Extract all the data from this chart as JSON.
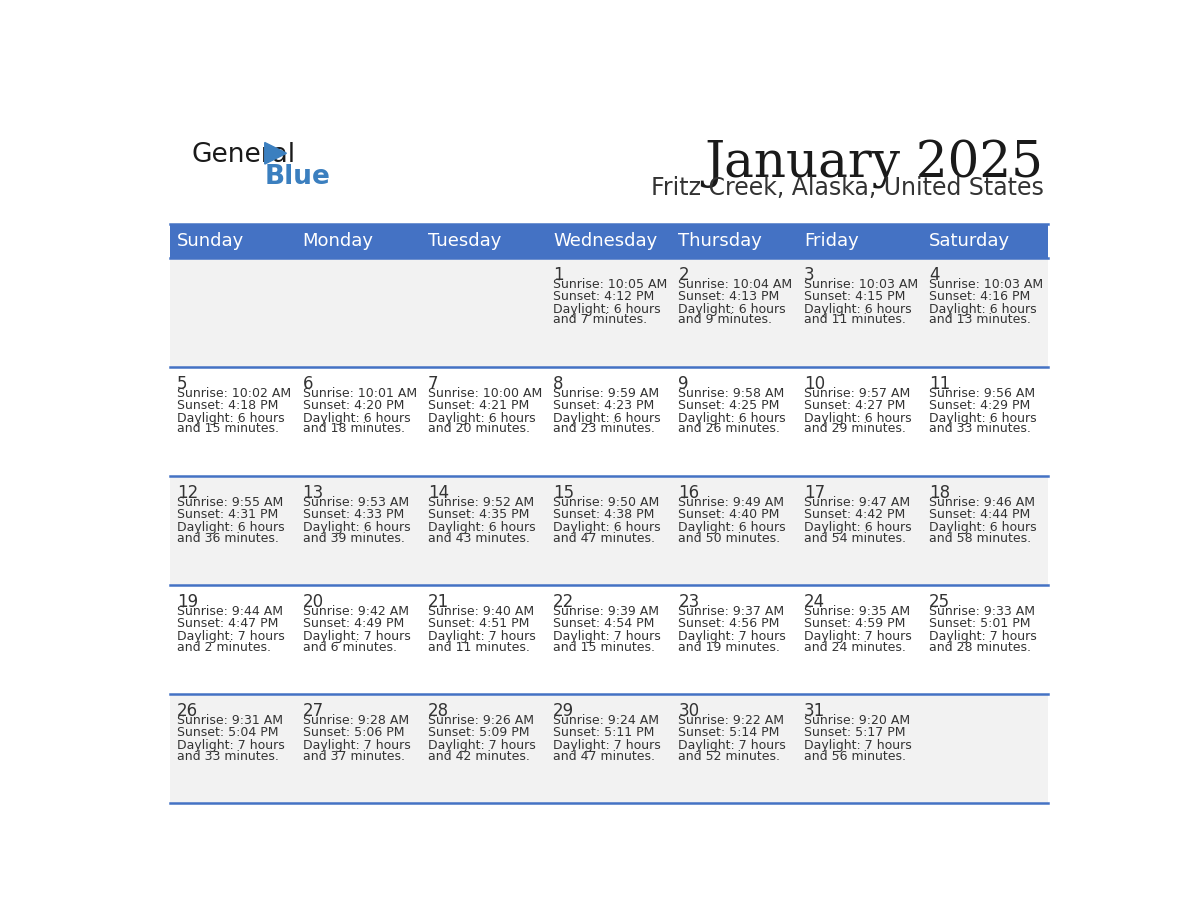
{
  "title": "January 2025",
  "subtitle": "Fritz Creek, Alaska, United States",
  "header_bg_color": "#4472C4",
  "header_text_color": "#FFFFFF",
  "day_names": [
    "Sunday",
    "Monday",
    "Tuesday",
    "Wednesday",
    "Thursday",
    "Friday",
    "Saturday"
  ],
  "row_bg_even": "#F2F2F2",
  "row_bg_odd": "#FFFFFF",
  "cell_text_color": "#333333",
  "date_text_color": "#333333",
  "divider_color": "#4472C4",
  "calendar_data": [
    [
      {
        "day": null,
        "sunrise": null,
        "sunset": null,
        "daylight": null
      },
      {
        "day": null,
        "sunrise": null,
        "sunset": null,
        "daylight": null
      },
      {
        "day": null,
        "sunrise": null,
        "sunset": null,
        "daylight": null
      },
      {
        "day": 1,
        "sunrise": "10:05 AM",
        "sunset": "4:12 PM",
        "daylight": "6 hours and 7 minutes."
      },
      {
        "day": 2,
        "sunrise": "10:04 AM",
        "sunset": "4:13 PM",
        "daylight": "6 hours and 9 minutes."
      },
      {
        "day": 3,
        "sunrise": "10:03 AM",
        "sunset": "4:15 PM",
        "daylight": "6 hours and 11 minutes."
      },
      {
        "day": 4,
        "sunrise": "10:03 AM",
        "sunset": "4:16 PM",
        "daylight": "6 hours and 13 minutes."
      }
    ],
    [
      {
        "day": 5,
        "sunrise": "10:02 AM",
        "sunset": "4:18 PM",
        "daylight": "6 hours and 15 minutes."
      },
      {
        "day": 6,
        "sunrise": "10:01 AM",
        "sunset": "4:20 PM",
        "daylight": "6 hours and 18 minutes."
      },
      {
        "day": 7,
        "sunrise": "10:00 AM",
        "sunset": "4:21 PM",
        "daylight": "6 hours and 20 minutes."
      },
      {
        "day": 8,
        "sunrise": "9:59 AM",
        "sunset": "4:23 PM",
        "daylight": "6 hours and 23 minutes."
      },
      {
        "day": 9,
        "sunrise": "9:58 AM",
        "sunset": "4:25 PM",
        "daylight": "6 hours and 26 minutes."
      },
      {
        "day": 10,
        "sunrise": "9:57 AM",
        "sunset": "4:27 PM",
        "daylight": "6 hours and 29 minutes."
      },
      {
        "day": 11,
        "sunrise": "9:56 AM",
        "sunset": "4:29 PM",
        "daylight": "6 hours and 33 minutes."
      }
    ],
    [
      {
        "day": 12,
        "sunrise": "9:55 AM",
        "sunset": "4:31 PM",
        "daylight": "6 hours and 36 minutes."
      },
      {
        "day": 13,
        "sunrise": "9:53 AM",
        "sunset": "4:33 PM",
        "daylight": "6 hours and 39 minutes."
      },
      {
        "day": 14,
        "sunrise": "9:52 AM",
        "sunset": "4:35 PM",
        "daylight": "6 hours and 43 minutes."
      },
      {
        "day": 15,
        "sunrise": "9:50 AM",
        "sunset": "4:38 PM",
        "daylight": "6 hours and 47 minutes."
      },
      {
        "day": 16,
        "sunrise": "9:49 AM",
        "sunset": "4:40 PM",
        "daylight": "6 hours and 50 minutes."
      },
      {
        "day": 17,
        "sunrise": "9:47 AM",
        "sunset": "4:42 PM",
        "daylight": "6 hours and 54 minutes."
      },
      {
        "day": 18,
        "sunrise": "9:46 AM",
        "sunset": "4:44 PM",
        "daylight": "6 hours and 58 minutes."
      }
    ],
    [
      {
        "day": 19,
        "sunrise": "9:44 AM",
        "sunset": "4:47 PM",
        "daylight": "7 hours and 2 minutes."
      },
      {
        "day": 20,
        "sunrise": "9:42 AM",
        "sunset": "4:49 PM",
        "daylight": "7 hours and 6 minutes."
      },
      {
        "day": 21,
        "sunrise": "9:40 AM",
        "sunset": "4:51 PM",
        "daylight": "7 hours and 11 minutes."
      },
      {
        "day": 22,
        "sunrise": "9:39 AM",
        "sunset": "4:54 PM",
        "daylight": "7 hours and 15 minutes."
      },
      {
        "day": 23,
        "sunrise": "9:37 AM",
        "sunset": "4:56 PM",
        "daylight": "7 hours and 19 minutes."
      },
      {
        "day": 24,
        "sunrise": "9:35 AM",
        "sunset": "4:59 PM",
        "daylight": "7 hours and 24 minutes."
      },
      {
        "day": 25,
        "sunrise": "9:33 AM",
        "sunset": "5:01 PM",
        "daylight": "7 hours and 28 minutes."
      }
    ],
    [
      {
        "day": 26,
        "sunrise": "9:31 AM",
        "sunset": "5:04 PM",
        "daylight": "7 hours and 33 minutes."
      },
      {
        "day": 27,
        "sunrise": "9:28 AM",
        "sunset": "5:06 PM",
        "daylight": "7 hours and 37 minutes."
      },
      {
        "day": 28,
        "sunrise": "9:26 AM",
        "sunset": "5:09 PM",
        "daylight": "7 hours and 42 minutes."
      },
      {
        "day": 29,
        "sunrise": "9:24 AM",
        "sunset": "5:11 PM",
        "daylight": "7 hours and 47 minutes."
      },
      {
        "day": 30,
        "sunrise": "9:22 AM",
        "sunset": "5:14 PM",
        "daylight": "7 hours and 52 minutes."
      },
      {
        "day": 31,
        "sunrise": "9:20 AM",
        "sunset": "5:17 PM",
        "daylight": "7 hours and 56 minutes."
      },
      {
        "day": null,
        "sunrise": null,
        "sunset": null,
        "daylight": null
      }
    ]
  ]
}
